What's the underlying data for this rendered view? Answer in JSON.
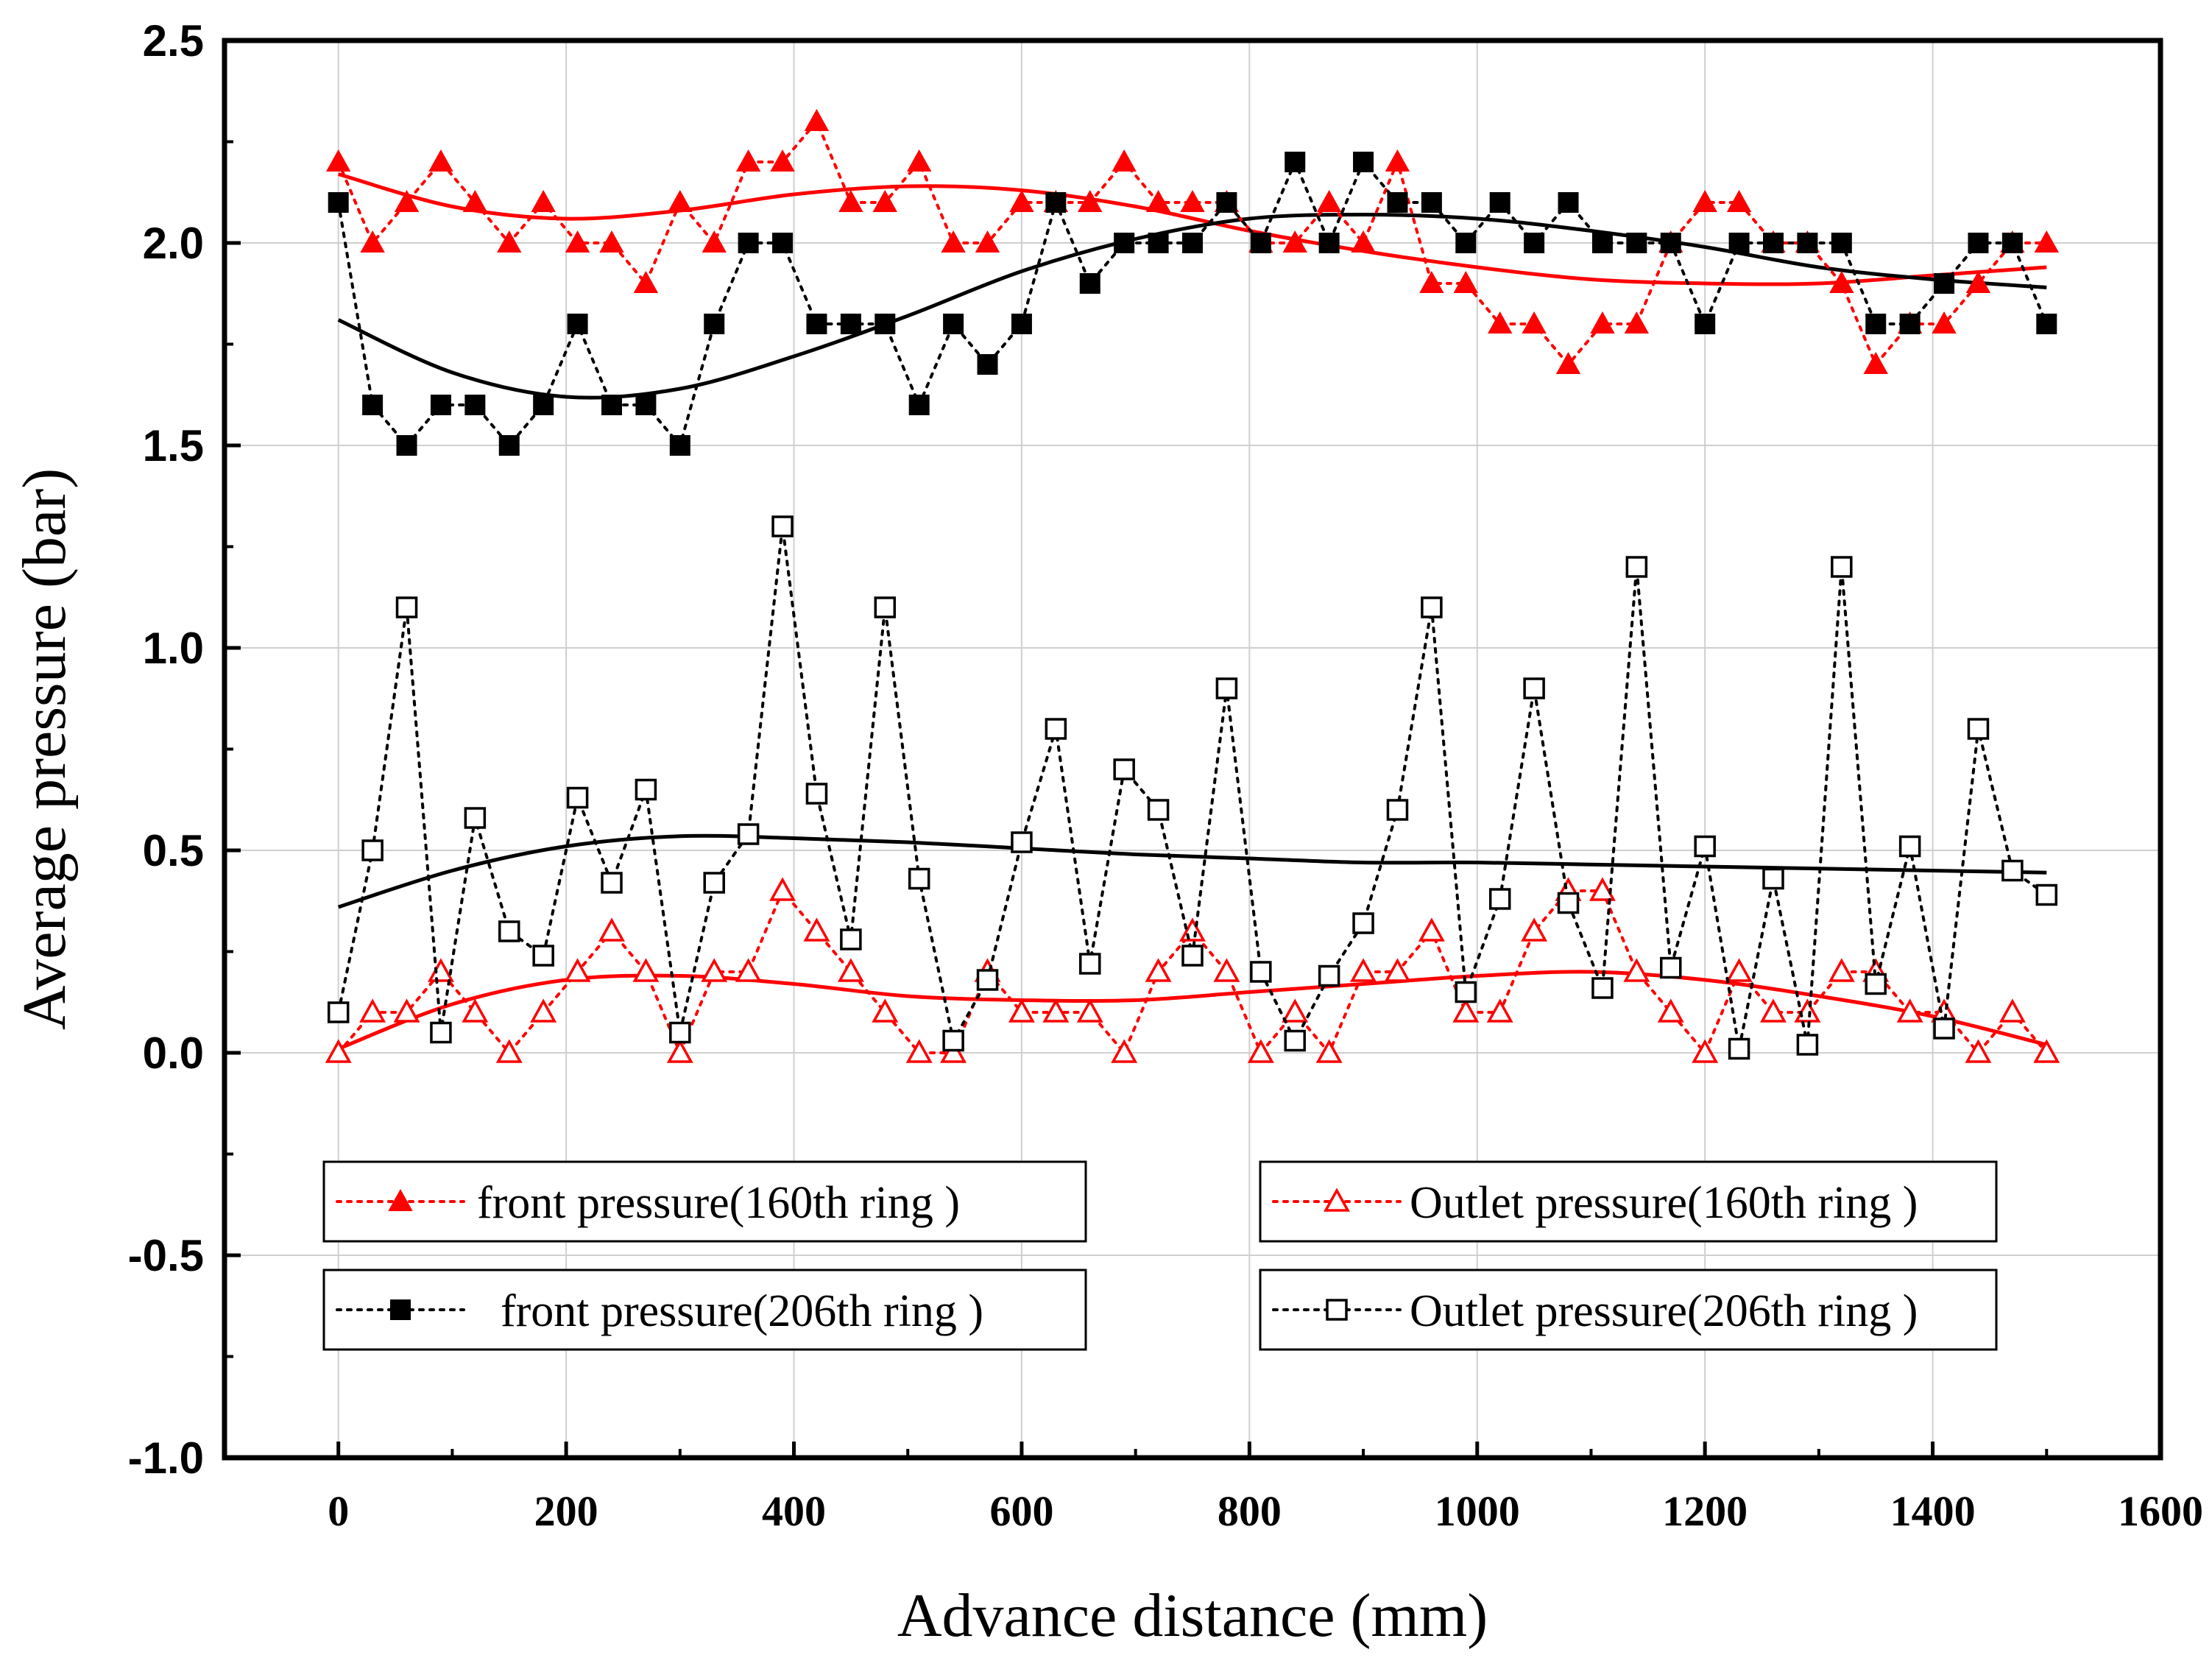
{
  "chart_data": {
    "type": "scatter",
    "title": "",
    "xlabel": "Advance distance (mm)",
    "ylabel": "Average pressure (bar)",
    "xlim": [
      -100,
      1600
    ],
    "ylim": [
      -1.0,
      2.5
    ],
    "xticks": [
      0,
      200,
      400,
      600,
      800,
      1000,
      1200,
      1400,
      1600
    ],
    "yticks": [
      -1.0,
      -0.5,
      0.0,
      0.5,
      1.0,
      1.5,
      2.0,
      2.5
    ],
    "xtick_labels": [
      "0",
      "200",
      "400",
      "600",
      "800",
      "1000",
      "1200",
      "1400",
      "1600"
    ],
    "ytick_labels": [
      "-1.0",
      "-0.5",
      "0.0",
      "0.5",
      "1.0",
      "1.5",
      "2.0",
      "2.5"
    ],
    "grid": true,
    "x": [
      0,
      30,
      60,
      90,
      120,
      150,
      180,
      210,
      240,
      270,
      300,
      330,
      360,
      390,
      420,
      450,
      480,
      510,
      540,
      570,
      600,
      630,
      660,
      690,
      720,
      750,
      780,
      810,
      840,
      870,
      900,
      930,
      960,
      990,
      1020,
      1050,
      1080,
      1110,
      1140,
      1170,
      1200,
      1230,
      1260,
      1290,
      1320,
      1350,
      1380,
      1410,
      1440,
      1470,
      1500
    ],
    "series": [
      {
        "name": "front pressure(160th ring )",
        "color": "#ff0000",
        "marker": "triangle-filled",
        "values": [
          2.2,
          2.0,
          2.1,
          2.2,
          2.1,
          2.0,
          2.1,
          2.0,
          2.0,
          1.9,
          2.1,
          2.0,
          2.2,
          2.2,
          2.3,
          2.1,
          2.1,
          2.2,
          2.0,
          2.0,
          2.1,
          2.1,
          2.1,
          2.2,
          2.1,
          2.1,
          2.1,
          2.0,
          2.0,
          2.1,
          2.0,
          2.2,
          1.9,
          1.9,
          1.8,
          1.8,
          1.7,
          1.8,
          1.8,
          2.0,
          2.1,
          2.1,
          2.0,
          2.0,
          1.9,
          1.7,
          1.8,
          1.8,
          1.9,
          2.0,
          2.0
        ],
        "fit": [
          [
            0,
            2.17
          ],
          [
            100,
            2.09
          ],
          [
            200,
            2.06
          ],
          [
            300,
            2.08
          ],
          [
            400,
            2.12
          ],
          [
            500,
            2.14
          ],
          [
            600,
            2.13
          ],
          [
            700,
            2.09
          ],
          [
            800,
            2.03
          ],
          [
            900,
            1.98
          ],
          [
            1000,
            1.94
          ],
          [
            1100,
            1.91
          ],
          [
            1200,
            1.9
          ],
          [
            1300,
            1.9
          ],
          [
            1400,
            1.92
          ],
          [
            1500,
            1.94
          ]
        ]
      },
      {
        "name": "front pressure(206th ring )",
        "color": "#000000",
        "marker": "square-filled",
        "values": [
          2.1,
          1.6,
          1.5,
          1.6,
          1.6,
          1.5,
          1.6,
          1.8,
          1.6,
          1.6,
          1.5,
          1.8,
          2.0,
          2.0,
          1.8,
          1.8,
          1.8,
          1.6,
          1.8,
          1.7,
          1.8,
          2.1,
          1.9,
          2.0,
          2.0,
          2.0,
          2.1,
          2.0,
          2.2,
          2.0,
          2.2,
          2.1,
          2.1,
          2.0,
          2.1,
          2.0,
          2.1,
          2.0,
          2.0,
          2.0,
          1.8,
          2.0,
          2.0,
          2.0,
          2.0,
          1.8,
          1.8,
          1.9,
          2.0,
          2.0,
          1.8
        ],
        "fit": [
          [
            0,
            1.81
          ],
          [
            100,
            1.68
          ],
          [
            200,
            1.62
          ],
          [
            300,
            1.64
          ],
          [
            400,
            1.72
          ],
          [
            500,
            1.82
          ],
          [
            600,
            1.93
          ],
          [
            700,
            2.01
          ],
          [
            800,
            2.06
          ],
          [
            900,
            2.07
          ],
          [
            1000,
            2.06
          ],
          [
            1100,
            2.03
          ],
          [
            1200,
            1.99
          ],
          [
            1300,
            1.94
          ],
          [
            1400,
            1.91
          ],
          [
            1500,
            1.89
          ]
        ]
      },
      {
        "name": "Outlet pressure(160th ring )",
        "color": "#ff0000",
        "marker": "triangle-open",
        "values": [
          0.0,
          0.1,
          0.1,
          0.2,
          0.1,
          0.0,
          0.1,
          0.2,
          0.3,
          0.2,
          0.0,
          0.2,
          0.2,
          0.4,
          0.3,
          0.2,
          0.1,
          0.0,
          0.0,
          0.2,
          0.1,
          0.1,
          0.1,
          0.0,
          0.2,
          0.3,
          0.2,
          0.0,
          0.1,
          0.0,
          0.2,
          0.2,
          0.3,
          0.1,
          0.1,
          0.3,
          0.4,
          0.4,
          0.2,
          0.1,
          0.0,
          0.2,
          0.1,
          0.1,
          0.2,
          0.2,
          0.1,
          0.1,
          0.0,
          0.1,
          0.0
        ],
        "fit": [
          [
            0,
            0.01
          ],
          [
            100,
            0.12
          ],
          [
            200,
            0.18
          ],
          [
            300,
            0.19
          ],
          [
            400,
            0.17
          ],
          [
            500,
            0.14
          ],
          [
            600,
            0.13
          ],
          [
            700,
            0.13
          ],
          [
            800,
            0.15
          ],
          [
            900,
            0.17
          ],
          [
            1000,
            0.19
          ],
          [
            1100,
            0.2
          ],
          [
            1200,
            0.18
          ],
          [
            1300,
            0.14
          ],
          [
            1400,
            0.09
          ],
          [
            1500,
            0.02
          ]
        ]
      },
      {
        "name": "Outlet pressure(206th ring )",
        "color": "#000000",
        "marker": "square-open",
        "values": [
          0.1,
          0.5,
          1.1,
          0.05,
          0.58,
          0.3,
          0.24,
          0.63,
          0.42,
          0.65,
          0.05,
          0.42,
          0.54,
          1.3,
          0.64,
          0.28,
          1.1,
          0.43,
          0.03,
          0.18,
          0.52,
          0.8,
          0.22,
          0.7,
          0.6,
          0.24,
          0.9,
          0.2,
          0.03,
          0.19,
          0.32,
          0.6,
          1.1,
          0.15,
          0.38,
          0.9,
          0.37,
          0.16,
          1.2,
          0.21,
          0.51,
          0.01,
          0.43,
          0.02,
          1.2,
          0.17,
          0.51,
          0.06,
          0.8,
          0.45,
          0.39
        ],
        "fit": [
          [
            0,
            0.36
          ],
          [
            100,
            0.45
          ],
          [
            200,
            0.51
          ],
          [
            300,
            0.535
          ],
          [
            400,
            0.53
          ],
          [
            500,
            0.52
          ],
          [
            600,
            0.505
          ],
          [
            700,
            0.49
          ],
          [
            800,
            0.48
          ],
          [
            900,
            0.47
          ],
          [
            1000,
            0.47
          ],
          [
            1100,
            0.465
          ],
          [
            1200,
            0.46
          ],
          [
            1300,
            0.455
          ],
          [
            1400,
            0.45
          ],
          [
            1500,
            0.445
          ]
        ]
      }
    ],
    "legend": {
      "placement": "lower-center",
      "entries": [
        "front pressure(160th ring )",
        "Outlet pressure(160th ring )",
        "front pressure(206th ring )",
        "Outlet pressure(206th ring )"
      ]
    }
  }
}
